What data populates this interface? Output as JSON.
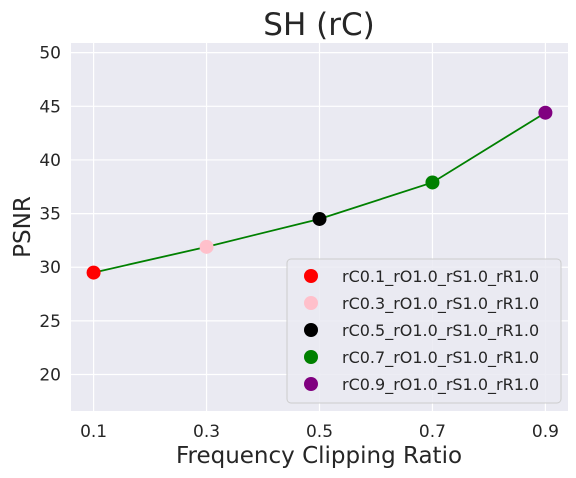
{
  "chart_data": {
    "type": "scatter",
    "title": "SH (rC)",
    "xlabel": "Frequency Clipping Ratio",
    "ylabel": "PSNR",
    "x_ticks": [
      "0.1",
      "0.3",
      "0.5",
      "0.7",
      "0.9"
    ],
    "y_ticks": [
      "20",
      "25",
      "30",
      "35",
      "40",
      "45",
      "50"
    ],
    "xlim": [
      0.06,
      0.94
    ],
    "ylim": [
      16.6,
      50.9
    ],
    "grid": true,
    "legend_position": "lower-right",
    "line": {
      "color": "#008000",
      "x": [
        0.1,
        0.3,
        0.5,
        0.7,
        0.9
      ],
      "y": [
        29.5,
        31.9,
        34.5,
        37.9,
        44.4
      ]
    },
    "series": [
      {
        "name": "rC0.1_rO1.0_rS1.0_rR1.0",
        "color": "#ff0000",
        "x": 0.1,
        "y": 29.5
      },
      {
        "name": "rC0.3_rO1.0_rS1.0_rR1.0",
        "color": "#ffc0cb",
        "x": 0.3,
        "y": 31.9
      },
      {
        "name": "rC0.5_rO1.0_rS1.0_rR1.0",
        "color": "#000000",
        "x": 0.5,
        "y": 34.5
      },
      {
        "name": "rC0.7_rO1.0_rS1.0_rR1.0",
        "color": "#008000",
        "x": 0.7,
        "y": 37.9
      },
      {
        "name": "rC0.9_rO1.0_rS1.0_rR1.0",
        "color": "#800080",
        "x": 0.9,
        "y": 44.4
      }
    ]
  }
}
